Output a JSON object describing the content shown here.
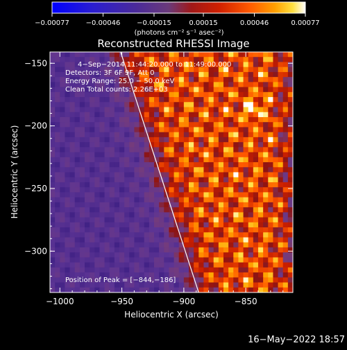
{
  "chart_data": {
    "type": "heatmap",
    "title": "Reconstructed RHESSI Image",
    "xlabel": "Heliocentric X (arcsec)",
    "ylabel": "Heliocentric Y (arcsec)",
    "xlim": [
      -1008,
      -812
    ],
    "ylim": [
      -333,
      -141
    ],
    "x_ticks": [
      -1000,
      -950,
      -900,
      -850
    ],
    "x_tick_labels": [
      "−1000",
      "−950",
      "−900",
      "−850"
    ],
    "y_ticks": [
      -150,
      -200,
      -250,
      -300
    ],
    "y_tick_labels": [
      "−150",
      "−200",
      "−250",
      "−300"
    ],
    "grid": false,
    "colorbar": {
      "min": -0.00077,
      "max": 0.00077,
      "ticks": [
        -0.00077,
        -0.00046,
        -0.00015,
        0.00015,
        0.00046,
        0.00077
      ],
      "tick_labels": [
        "−0.00077",
        "−0.00046",
        "−0.00015",
        "0.00015",
        "0.00046",
        "0.00077"
      ],
      "units_label": "(photons cm⁻² s⁻¹ asec⁻²)"
    },
    "annotations": [
      "4−Sep−2014 11:44:20.000 to 11:49:00.000",
      "Detectors: 3F 6F 9F, Att 0",
      "Energy Range: 25.0 − 50.0 keV",
      "Clean    Total counts: 2.26E+03"
    ],
    "peak_label": "Position of Peak = [−844,−186]",
    "peak": [
      -844,
      -186
    ],
    "limb_line": [
      [
        -951,
        -141
      ],
      [
        -888,
        -333
      ]
    ]
  },
  "footer": {
    "timestamp": "16−May−2022 18:57"
  },
  "colors": {
    "background": "#000000",
    "foreground": "#ffffff"
  }
}
